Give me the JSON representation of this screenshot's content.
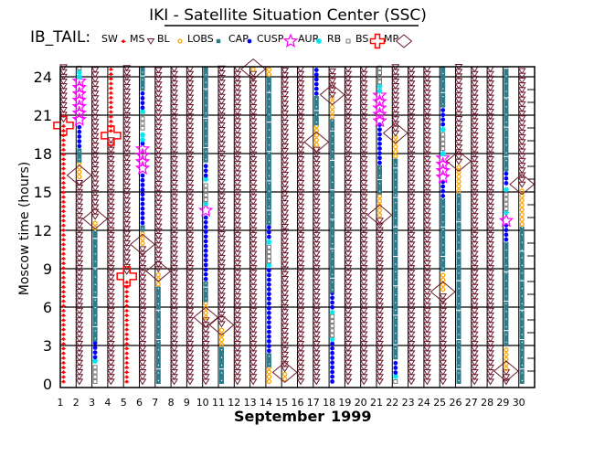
{
  "chart_data": {
    "type": "scatter",
    "title": "IKI - Satellite Situation Center (SSC)",
    "satellite_label": "IB_TAIL:",
    "xlabel_month": "September",
    "xlabel_year": "1999",
    "ylabel": "Moscow time (hours)",
    "xlim": [
      1,
      30
    ],
    "ylim": [
      0,
      24.8
    ],
    "yticks": [
      "0",
      "3",
      "6",
      "9",
      "12",
      "15",
      "18",
      "21",
      "24"
    ],
    "xticks": [
      "1",
      "2",
      "3",
      "4",
      "5",
      "6",
      "7",
      "8",
      "9",
      "10",
      "11",
      "12",
      "13",
      "14",
      "15",
      "16",
      "17",
      "18",
      "19",
      "20",
      "21",
      "22",
      "23",
      "24",
      "25",
      "26",
      "27",
      "28",
      "29",
      "30"
    ],
    "grid": true,
    "legend": [
      {
        "code": "SW",
        "label": "SW",
        "color": "#ff0000"
      },
      {
        "code": "MS",
        "label": "MS",
        "color": "#6b1a2e"
      },
      {
        "code": "BL",
        "label": "BL",
        "color": "#ffa500"
      },
      {
        "code": "LOBS",
        "label": "LOBS",
        "color": "#2e7b8c"
      },
      {
        "code": "CAP",
        "label": "CAP",
        "color": "#0000ff"
      },
      {
        "code": "CUSP",
        "label": "CUSP",
        "color": "#ff00ff"
      },
      {
        "code": "AUR",
        "label": "AUR",
        "color": "#00e5ee"
      },
      {
        "code": "RB",
        "label": "RB",
        "color": "#777777"
      },
      {
        "code": "BS",
        "label": "BS",
        "color": "#ff0000"
      },
      {
        "code": "MP",
        "label": "MP",
        "color": "#6b1a2e"
      }
    ],
    "days": [
      {
        "day": 1,
        "segments": [
          [
            "SW",
            0,
            20.5
          ],
          [
            "MS",
            20.5,
            24.8
          ]
        ],
        "markers": [
          [
            "BS",
            20.2
          ]
        ]
      },
      {
        "day": 2,
        "segments": [
          [
            "MS",
            0,
            16
          ],
          [
            "BL",
            16,
            17.3
          ],
          [
            "LOBS",
            17.3,
            18.4
          ],
          [
            "CAP",
            18.4,
            20.4
          ],
          [
            "CUSP",
            20.4,
            23.8
          ],
          [
            "AUR",
            23.8,
            24.5
          ],
          [
            "RB",
            24.5,
            24.8
          ]
        ],
        "markers": [
          [
            "MP",
            16.3
          ]
        ]
      },
      {
        "day": 3,
        "segments": [
          [
            "RB",
            0,
            1.6
          ],
          [
            "AUR",
            1.6,
            1.9
          ],
          [
            "CAP",
            1.9,
            3.3
          ],
          [
            "LOBS",
            3.3,
            12
          ],
          [
            "BL",
            12,
            12.9
          ],
          [
            "MS",
            12.9,
            24.8
          ]
        ],
        "markers": [
          [
            "MP",
            12.9
          ]
        ]
      },
      {
        "day": 4,
        "segments": [
          [
            "MS",
            0,
            19.2
          ],
          [
            "SW",
            19.6,
            24.8
          ]
        ],
        "markers": [
          [
            "BS",
            19.4
          ]
        ]
      },
      {
        "day": 5,
        "segments": [
          [
            "SW",
            0,
            8.2
          ],
          [
            "MS",
            8.6,
            24.8
          ]
        ],
        "markers": [
          [
            "BS",
            8.4
          ]
        ]
      },
      {
        "day": 6,
        "segments": [
          [
            "MS",
            0,
            10.8
          ],
          [
            "BL",
            10.8,
            11.9
          ],
          [
            "LOBS",
            11.9,
            12.4
          ],
          [
            "CAP",
            12.4,
            16.6
          ],
          [
            "CUSP",
            16.6,
            18.6
          ],
          [
            "CAP",
            18.6,
            18.9
          ],
          [
            "AUR",
            18.9,
            19.8
          ],
          [
            "RB",
            19.8,
            21.1
          ],
          [
            "AUR",
            21.1,
            21.4
          ],
          [
            "CAP",
            21.4,
            22.9
          ],
          [
            "LOBS",
            22.9,
            24.8
          ]
        ],
        "markers": [
          [
            "MP",
            10.9
          ]
        ]
      },
      {
        "day": 7,
        "segments": [
          [
            "LOBS",
            0,
            7.6
          ],
          [
            "BL",
            7.6,
            8.8
          ],
          [
            "MS",
            8.8,
            24.8
          ]
        ],
        "markers": [
          [
            "MP",
            8.8
          ]
        ]
      },
      {
        "day": 8,
        "segments": [
          [
            "MS",
            0,
            24.8
          ]
        ],
        "markers": []
      },
      {
        "day": 9,
        "segments": [
          [
            "MS",
            0,
            24.8
          ]
        ],
        "markers": []
      },
      {
        "day": 10,
        "segments": [
          [
            "MS",
            0,
            5
          ],
          [
            "BL",
            5,
            6.4
          ],
          [
            "LOBS",
            6.4,
            8
          ],
          [
            "CAP",
            8,
            13.3
          ],
          [
            "CUSP",
            13.3,
            13.9
          ],
          [
            "AUR",
            13.9,
            14.2
          ],
          [
            "RB",
            14.2,
            15.8
          ],
          [
            "AUR",
            15.8,
            16.1
          ],
          [
            "CAP",
            16.1,
            17.3
          ],
          [
            "LOBS",
            17.3,
            24.8
          ]
        ],
        "markers": [
          [
            "MP",
            5.2
          ]
        ]
      },
      {
        "day": 11,
        "segments": [
          [
            "LOBS",
            0,
            2.9
          ],
          [
            "BL",
            2.9,
            4.5
          ],
          [
            "MS",
            4.5,
            24.8
          ]
        ],
        "markers": [
          [
            "MP",
            4.6
          ]
        ]
      },
      {
        "day": 12,
        "segments": [
          [
            "MS",
            0,
            24.8
          ]
        ],
        "markers": []
      },
      {
        "day": 13,
        "segments": [
          [
            "MS",
            0,
            24.4
          ],
          [
            "BL",
            24.4,
            24.8
          ]
        ],
        "markers": [
          [
            "MP",
            24.6
          ]
        ]
      },
      {
        "day": 14,
        "segments": [
          [
            "BL",
            0,
            1.3
          ],
          [
            "LOBS",
            1.3,
            2.4
          ],
          [
            "CAP",
            2.4,
            9.1
          ],
          [
            "AUR",
            9.1,
            9.4
          ],
          [
            "RB",
            9.4,
            10.9
          ],
          [
            "AUR",
            10.9,
            11.3
          ],
          [
            "CAP",
            11.3,
            12.4
          ],
          [
            "LOBS",
            12.4,
            24
          ],
          [
            "BL",
            24,
            24.8
          ]
        ],
        "markers": []
      },
      {
        "day": 15,
        "segments": [
          [
            "BL",
            0.2,
            1
          ],
          [
            "MS",
            1,
            24.8
          ]
        ],
        "markers": [
          [
            "MP",
            0.9
          ]
        ]
      },
      {
        "day": 16,
        "segments": [
          [
            "MS",
            0,
            24.8
          ]
        ],
        "markers": []
      },
      {
        "day": 17,
        "segments": [
          [
            "MS",
            0,
            18.5
          ],
          [
            "BL",
            18.5,
            20.2
          ],
          [
            "LOBS",
            20.2,
            22.5
          ],
          [
            "CAP",
            22.5,
            24.8
          ]
        ],
        "markers": [
          [
            "MP",
            18.9
          ]
        ]
      },
      {
        "day": 18,
        "segments": [
          [
            "CAP",
            0,
            3.3
          ],
          [
            "AUR",
            3.3,
            3.6
          ],
          [
            "RB",
            3.6,
            5.4
          ],
          [
            "AUR",
            5.4,
            5.8
          ],
          [
            "CAP",
            5.8,
            7.1
          ],
          [
            "LOBS",
            7.1,
            20.7
          ],
          [
            "BL",
            20.7,
            22.4
          ],
          [
            "MS",
            22.4,
            24.8
          ]
        ],
        "markers": [
          [
            "MP",
            22.6
          ]
        ]
      },
      {
        "day": 19,
        "segments": [
          [
            "MS",
            0,
            24.8
          ]
        ],
        "markers": []
      },
      {
        "day": 20,
        "segments": [
          [
            "MS",
            0,
            24.8
          ]
        ],
        "markers": []
      },
      {
        "day": 21,
        "segments": [
          [
            "MS",
            0,
            13
          ],
          [
            "BL",
            13,
            14.8
          ],
          [
            "LOBS",
            14.8,
            17.1
          ],
          [
            "CAP",
            17.1,
            20.3
          ],
          [
            "CUSP",
            20.3,
            22.7
          ],
          [
            "AUR",
            22.7,
            23.4
          ],
          [
            "RB",
            23.4,
            24.8
          ]
        ],
        "markers": [
          [
            "MP",
            13.2
          ]
        ]
      },
      {
        "day": 22,
        "segments": [
          [
            "RB",
            0,
            0.4
          ],
          [
            "AUR",
            0.4,
            0.7
          ],
          [
            "CAP",
            0.7,
            1.9
          ],
          [
            "LOBS",
            1.9,
            17.6
          ],
          [
            "BL",
            17.6,
            19.4
          ],
          [
            "MS",
            19.4,
            24.8
          ]
        ],
        "markers": [
          [
            "MP",
            19.6
          ]
        ]
      },
      {
        "day": 23,
        "segments": [
          [
            "MS",
            0,
            24.8
          ]
        ],
        "markers": []
      },
      {
        "day": 24,
        "segments": [
          [
            "MS",
            0,
            24.8
          ]
        ],
        "markers": []
      },
      {
        "day": 25,
        "segments": [
          [
            "MS",
            0,
            7.2
          ],
          [
            "BL",
            7.2,
            8.8
          ],
          [
            "LOBS",
            8.8,
            14.5
          ],
          [
            "CAP",
            14.5,
            15.9
          ],
          [
            "CUSP",
            15.9,
            17.8
          ],
          [
            "AUR",
            17.8,
            18.2
          ],
          [
            "RB",
            18.2,
            19.7
          ],
          [
            "AUR",
            19.7,
            20.1
          ],
          [
            "CAP",
            20.1,
            21.6
          ],
          [
            "LOBS",
            21.6,
            24.8
          ]
        ],
        "markers": [
          [
            "MP",
            7.2
          ]
        ]
      },
      {
        "day": 26,
        "segments": [
          [
            "LOBS",
            0,
            14.9
          ],
          [
            "BL",
            14.9,
            17.2
          ],
          [
            "MS",
            17.2,
            24.8
          ]
        ],
        "markers": [
          [
            "MP",
            17.4
          ]
        ]
      },
      {
        "day": 27,
        "segments": [
          [
            "MS",
            0,
            24.8
          ]
        ],
        "markers": []
      },
      {
        "day": 28,
        "segments": [
          [
            "MS",
            0,
            24.8
          ]
        ],
        "markers": []
      },
      {
        "day": 29,
        "segments": [
          [
            "MS",
            0,
            1
          ],
          [
            "BL",
            1,
            3
          ],
          [
            "LOBS",
            3,
            11.1
          ],
          [
            "CAP",
            11.1,
            12.5
          ],
          [
            "CUSP",
            12.5,
            13.2
          ],
          [
            "AUR",
            13.2,
            13.5
          ],
          [
            "RB",
            13.5,
            15
          ],
          [
            "AUR",
            15,
            15.5
          ],
          [
            "CAP",
            15.5,
            16.6
          ],
          [
            "LOBS",
            16.6,
            24.8
          ]
        ],
        "markers": [
          [
            "MP",
            1.0
          ]
        ]
      },
      {
        "day": 30,
        "segments": [
          [
            "LOBS",
            0,
            12.3
          ],
          [
            "BL",
            12.3,
            15.4
          ],
          [
            "MS",
            15.4,
            24.8
          ]
        ],
        "markers": [
          [
            "MP",
            15.6
          ]
        ]
      }
    ]
  }
}
